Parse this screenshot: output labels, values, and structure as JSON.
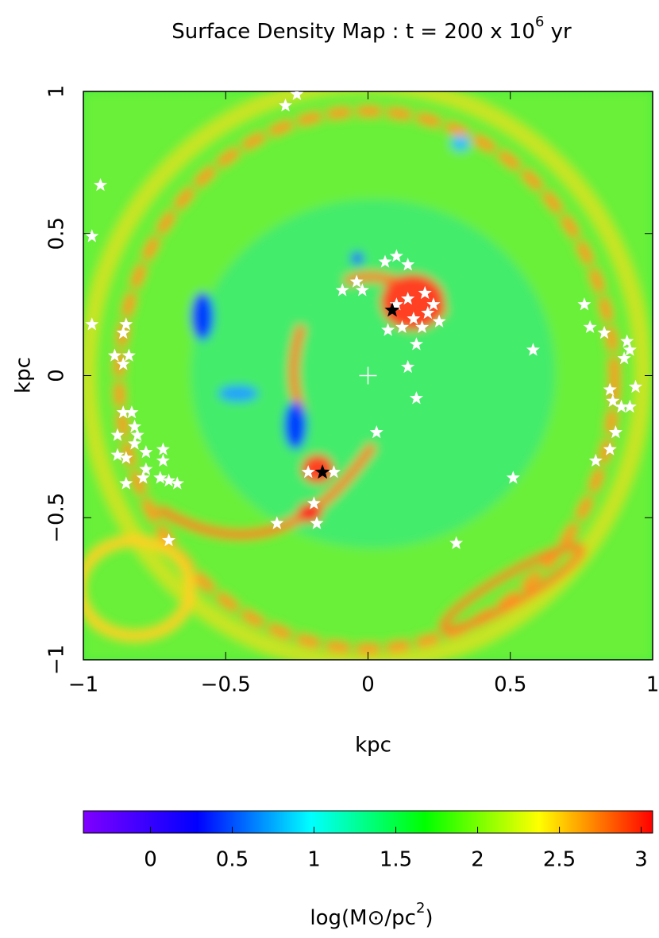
{
  "chart_data": {
    "type": "density_map",
    "title": {
      "text": "Surface Density Map : t = 200 x 10",
      "exponent": "6",
      "suffix": " yr"
    },
    "xlabel": "kpc",
    "ylabel": "kpc",
    "xlim": [
      -1,
      1
    ],
    "ylim": [
      -1,
      1
    ],
    "xticks": [
      {
        "value": -1,
        "label": "−1"
      },
      {
        "value": -0.5,
        "label": "−0.5"
      },
      0,
      0.5,
      1
    ],
    "yticks": [
      {
        "value": -1,
        "label": "−1"
      },
      {
        "value": -0.5,
        "label": "−0.5"
      },
      0,
      0.5,
      1
    ],
    "stars": {
      "color": "#ffffff",
      "x": [
        -0.25,
        -0.29,
        -0.94,
        -0.97,
        -0.97,
        -0.85,
        -0.86,
        -0.89,
        -0.86,
        -0.84,
        -0.86,
        -0.83,
        -0.88,
        -0.82,
        -0.81,
        -0.82,
        -0.88,
        -0.85,
        -0.78,
        -0.72,
        -0.72,
        -0.78,
        -0.79,
        -0.73,
        -0.7,
        -0.67,
        -0.85,
        -0.7,
        -0.32,
        -0.18,
        -0.19,
        -0.21,
        -0.12,
        0.03,
        -0.09,
        -0.04,
        -0.02,
        0.06,
        0.1,
        0.14,
        0.07,
        0.1,
        0.14,
        0.2,
        0.23,
        0.16,
        0.21,
        0.25,
        0.19,
        0.17,
        0.12,
        0.14,
        0.17,
        0.51,
        0.31,
        0.58,
        0.76,
        0.78,
        0.83,
        0.91,
        0.92,
        0.9,
        0.94,
        0.85,
        0.86,
        0.89,
        0.92,
        0.87,
        0.85,
        0.8
      ],
      "y": [
        0.99,
        0.95,
        0.67,
        0.49,
        0.18,
        0.18,
        0.15,
        0.07,
        0.04,
        0.07,
        -0.13,
        -0.13,
        -0.21,
        -0.18,
        -0.21,
        -0.24,
        -0.28,
        -0.29,
        -0.27,
        -0.26,
        -0.3,
        -0.33,
        -0.36,
        -0.36,
        -0.37,
        -0.38,
        -0.38,
        -0.58,
        -0.52,
        -0.52,
        -0.45,
        -0.34,
        -0.34,
        -0.2,
        0.3,
        0.33,
        0.3,
        0.4,
        0.42,
        0.39,
        0.16,
        0.25,
        0.27,
        0.29,
        0.25,
        0.2,
        0.22,
        0.19,
        0.17,
        0.11,
        0.17,
        0.03,
        -0.08,
        -0.36,
        -0.59,
        0.09,
        0.25,
        0.17,
        0.15,
        0.12,
        0.09,
        0.06,
        -0.04,
        -0.05,
        -0.09,
        -0.11,
        -0.11,
        -0.2,
        -0.26,
        -0.3
      ]
    },
    "black_stars": {
      "color": "#000000",
      "x": [
        0.085,
        -0.16
      ],
      "y": [
        0.23,
        -0.34
      ]
    },
    "center": {
      "x": 0,
      "y": 0,
      "color": "#ffffff"
    },
    "colorbar": {
      "clim": [
        -0.41,
        3.07
      ],
      "colormap": [
        "#8000ff",
        "#0000ff",
        "#00ffff",
        "#00ff00",
        "#ffff00",
        "#ff0000"
      ],
      "ticks": [
        0,
        0.5,
        1,
        1.5,
        2,
        2.5,
        3
      ],
      "label": {
        "text": "log(M⊙/pc",
        "exponent": "2",
        "suffix": ")"
      }
    }
  }
}
